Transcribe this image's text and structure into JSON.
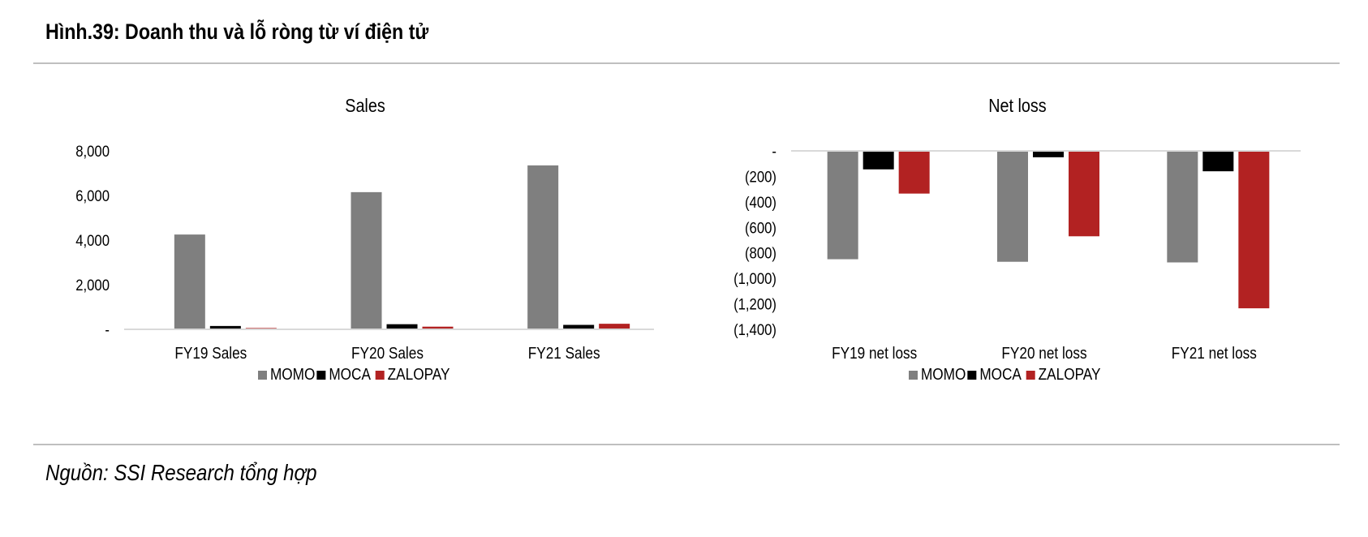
{
  "figure": {
    "title": "Hình.39: Doanh thu và lỗ ròng từ ví điện tử",
    "source": "Nguồn: SSI Research tổng hợp"
  },
  "colors": {
    "MOMO": "#7f7f7f",
    "MOCA": "#000000",
    "ZALOPAY": "#b22222",
    "axis": "#d9d9d9"
  },
  "chart_data": [
    {
      "type": "bar",
      "title": "Sales",
      "categories": [
        "FY19 Sales",
        "FY20 Sales",
        "FY21 Sales"
      ],
      "series": [
        {
          "name": "MOMO",
          "values": [
            4250,
            6150,
            7350
          ]
        },
        {
          "name": "MOCA",
          "values": [
            150,
            230,
            200
          ]
        },
        {
          "name": "ZALOPAY",
          "values": [
            60,
            120,
            250
          ]
        }
      ],
      "ylim": [
        0,
        8000
      ],
      "yticks": [
        0,
        2000,
        4000,
        6000,
        8000
      ],
      "ytick_labels": [
        "-",
        "2,000",
        "4,000",
        "6,000",
        "8,000"
      ],
      "legend": "bottom",
      "xlabel": "",
      "ylabel": ""
    },
    {
      "type": "bar",
      "title": "Net loss",
      "categories": [
        "FY19 net loss",
        "FY20 net loss",
        "FY21 net loss"
      ],
      "series": [
        {
          "name": "MOMO",
          "values": [
            -850,
            -870,
            -875
          ]
        },
        {
          "name": "MOCA",
          "values": [
            -145,
            -50,
            -160
          ]
        },
        {
          "name": "ZALOPAY",
          "values": [
            -335,
            -670,
            -1235
          ]
        }
      ],
      "ylim": [
        -1400,
        0
      ],
      "yticks": [
        0,
        -200,
        -400,
        -600,
        -800,
        -1000,
        -1200,
        -1400
      ],
      "ytick_labels": [
        "-",
        "(200)",
        "(400)",
        "(600)",
        "(800)",
        "(1,000)",
        "(1,200)",
        "(1,400)"
      ],
      "legend": "bottom",
      "xlabel": "",
      "ylabel": ""
    }
  ]
}
